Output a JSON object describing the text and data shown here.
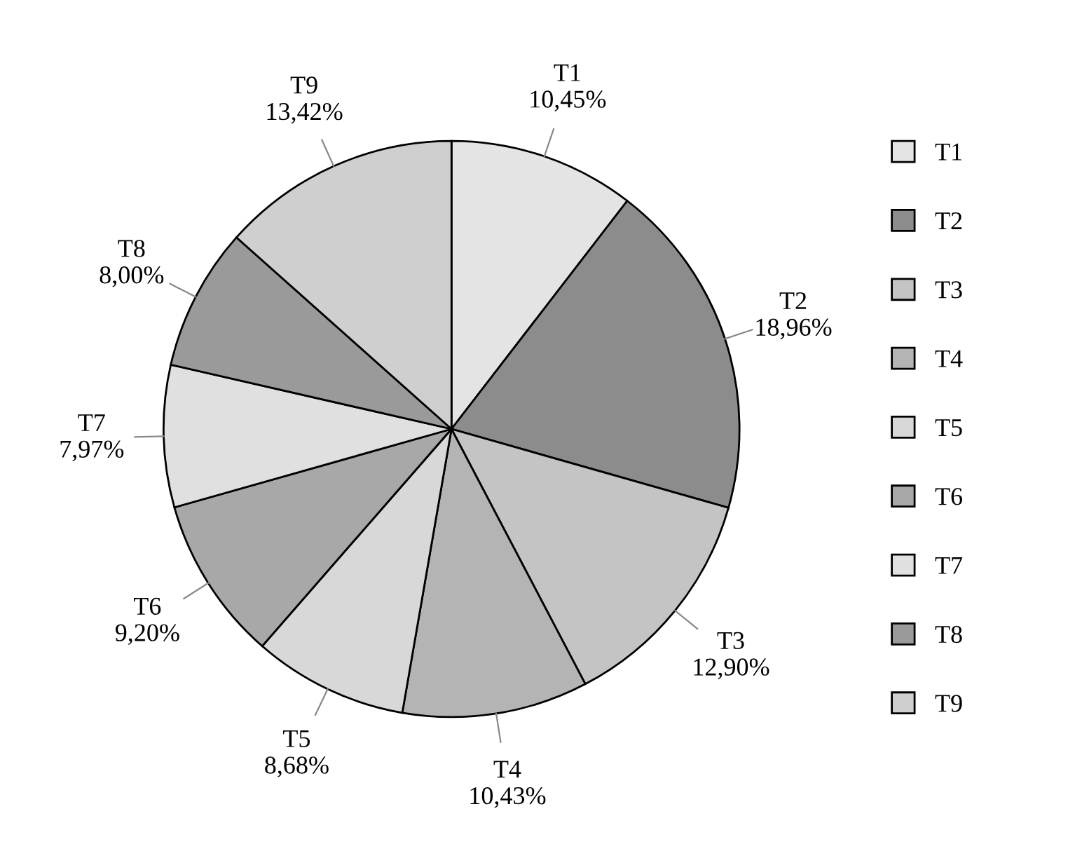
{
  "chart_data": {
    "type": "pie",
    "categories": [
      "T1",
      "T2",
      "T3",
      "T4",
      "T5",
      "T6",
      "T7",
      "T8",
      "T9"
    ],
    "values": [
      10.45,
      18.96,
      12.9,
      10.43,
      8.68,
      9.2,
      7.97,
      8.0,
      13.42
    ],
    "value_labels": [
      "10,45%",
      "18,96%",
      "12,90%",
      "10,43%",
      "8,68%",
      "9,20%",
      "7,97%",
      "8,00%",
      "13,42%"
    ],
    "colors": [
      "#e4e4e4",
      "#8c8c8c",
      "#c4c4c4",
      "#b4b4b4",
      "#d8d8d8",
      "#a8a8a8",
      "#e0e0e0",
      "#9a9a9a",
      "#cfcfcf"
    ],
    "legend": "right"
  }
}
